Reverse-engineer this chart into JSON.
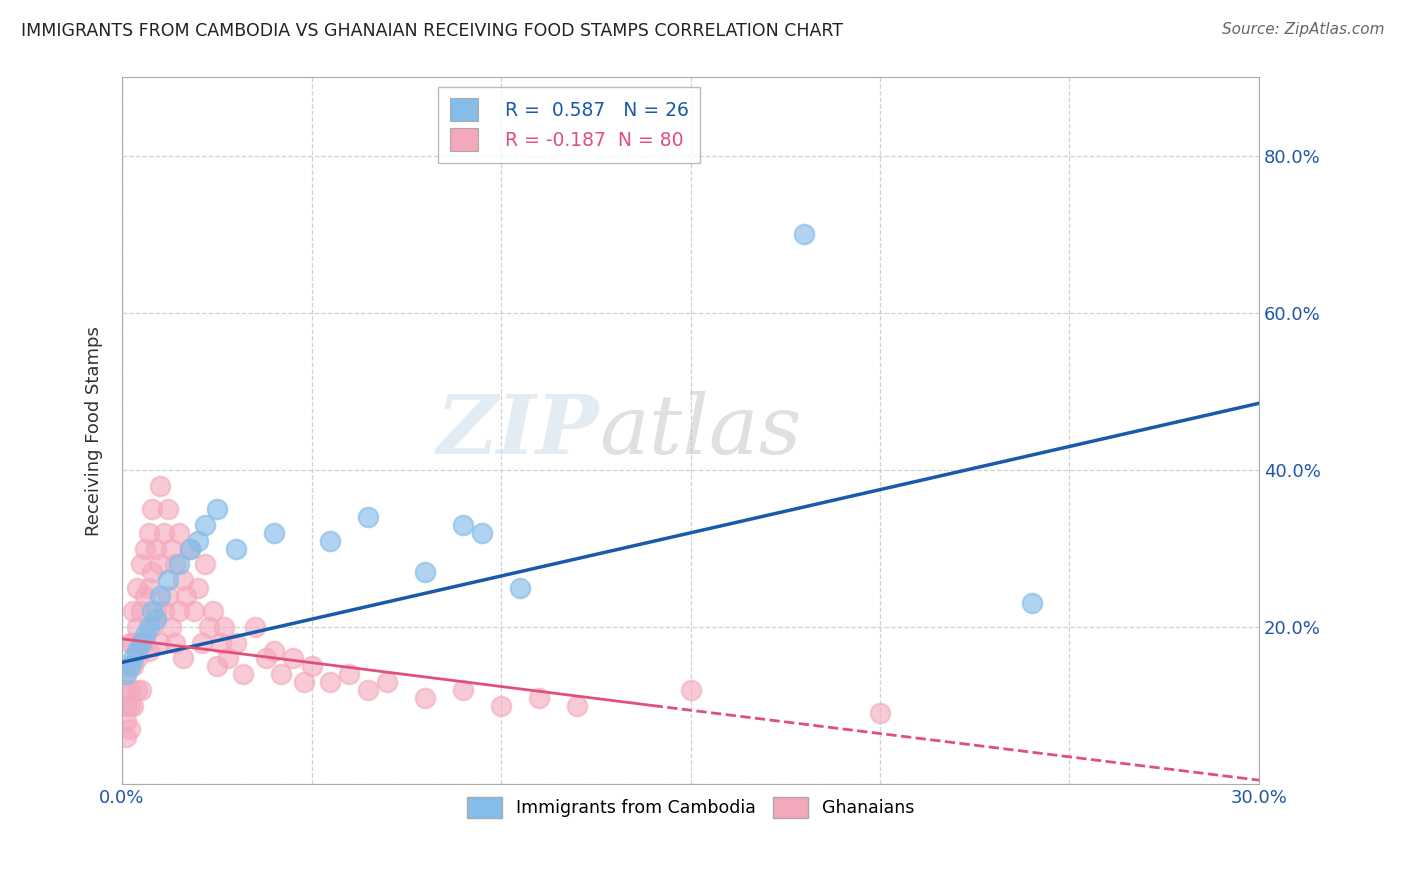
{
  "title": "IMMIGRANTS FROM CAMBODIA VS GHANAIAN RECEIVING FOOD STAMPS CORRELATION CHART",
  "source": "Source: ZipAtlas.com",
  "ylabel": "Receiving Food Stamps",
  "xlabel": "",
  "xlim": [
    0.0,
    0.3
  ],
  "ylim": [
    0.0,
    0.9
  ],
  "xticks": [
    0.0,
    0.05,
    0.1,
    0.15,
    0.2,
    0.25,
    0.3
  ],
  "yticks": [
    0.0,
    0.2,
    0.4,
    0.6,
    0.8
  ],
  "cambodia_R": 0.587,
  "cambodia_N": 26,
  "ghana_R": -0.187,
  "ghana_N": 80,
  "cambodia_color": "#85bce8",
  "ghana_color": "#f4a8bc",
  "trend_cambodia_color": "#1a5aaa",
  "trend_ghana_color": "#e0507a",
  "cambodia_x": [
    0.001,
    0.002,
    0.003,
    0.004,
    0.005,
    0.006,
    0.007,
    0.008,
    0.009,
    0.01,
    0.012,
    0.015,
    0.018,
    0.02,
    0.022,
    0.025,
    0.03,
    0.04,
    0.055,
    0.065,
    0.08,
    0.09,
    0.095,
    0.105,
    0.18,
    0.24
  ],
  "cambodia_y": [
    0.14,
    0.15,
    0.16,
    0.17,
    0.18,
    0.19,
    0.2,
    0.22,
    0.21,
    0.24,
    0.26,
    0.28,
    0.3,
    0.31,
    0.33,
    0.35,
    0.3,
    0.32,
    0.31,
    0.34,
    0.27,
    0.33,
    0.32,
    0.25,
    0.7,
    0.23
  ],
  "ghana_x": [
    0.001,
    0.001,
    0.001,
    0.001,
    0.001,
    0.002,
    0.002,
    0.002,
    0.002,
    0.002,
    0.003,
    0.003,
    0.003,
    0.003,
    0.004,
    0.004,
    0.004,
    0.004,
    0.005,
    0.005,
    0.005,
    0.005,
    0.006,
    0.006,
    0.006,
    0.007,
    0.007,
    0.007,
    0.008,
    0.008,
    0.008,
    0.009,
    0.009,
    0.01,
    0.01,
    0.01,
    0.011,
    0.011,
    0.012,
    0.012,
    0.013,
    0.013,
    0.014,
    0.014,
    0.015,
    0.015,
    0.016,
    0.016,
    0.017,
    0.018,
    0.019,
    0.02,
    0.021,
    0.022,
    0.023,
    0.024,
    0.025,
    0.026,
    0.027,
    0.028,
    0.03,
    0.032,
    0.035,
    0.038,
    0.04,
    0.042,
    0.045,
    0.048,
    0.05,
    0.055,
    0.06,
    0.065,
    0.07,
    0.08,
    0.09,
    0.1,
    0.11,
    0.12,
    0.15,
    0.2
  ],
  "ghana_y": [
    0.14,
    0.12,
    0.1,
    0.08,
    0.06,
    0.18,
    0.15,
    0.12,
    0.1,
    0.07,
    0.22,
    0.18,
    0.15,
    0.1,
    0.25,
    0.2,
    0.16,
    0.12,
    0.28,
    0.22,
    0.18,
    0.12,
    0.3,
    0.24,
    0.18,
    0.32,
    0.25,
    0.17,
    0.35,
    0.27,
    0.2,
    0.3,
    0.22,
    0.38,
    0.28,
    0.18,
    0.32,
    0.22,
    0.35,
    0.24,
    0.3,
    0.2,
    0.28,
    0.18,
    0.32,
    0.22,
    0.26,
    0.16,
    0.24,
    0.3,
    0.22,
    0.25,
    0.18,
    0.28,
    0.2,
    0.22,
    0.15,
    0.18,
    0.2,
    0.16,
    0.18,
    0.14,
    0.2,
    0.16,
    0.17,
    0.14,
    0.16,
    0.13,
    0.15,
    0.13,
    0.14,
    0.12,
    0.13,
    0.11,
    0.12,
    0.1,
    0.11,
    0.1,
    0.12,
    0.09
  ],
  "trend_cambodia_x0": 0.0,
  "trend_cambodia_y0": 0.155,
  "trend_cambodia_x1": 0.3,
  "trend_cambodia_y1": 0.485,
  "trend_ghana_x0": 0.0,
  "trend_ghana_y0": 0.185,
  "trend_ghana_x1": 0.14,
  "trend_ghana_y1": 0.1,
  "trend_ghana_dashed_x0": 0.14,
  "trend_ghana_dashed_y0": 0.1,
  "trend_ghana_dashed_x1": 0.3,
  "trend_ghana_dashed_y1": 0.005
}
